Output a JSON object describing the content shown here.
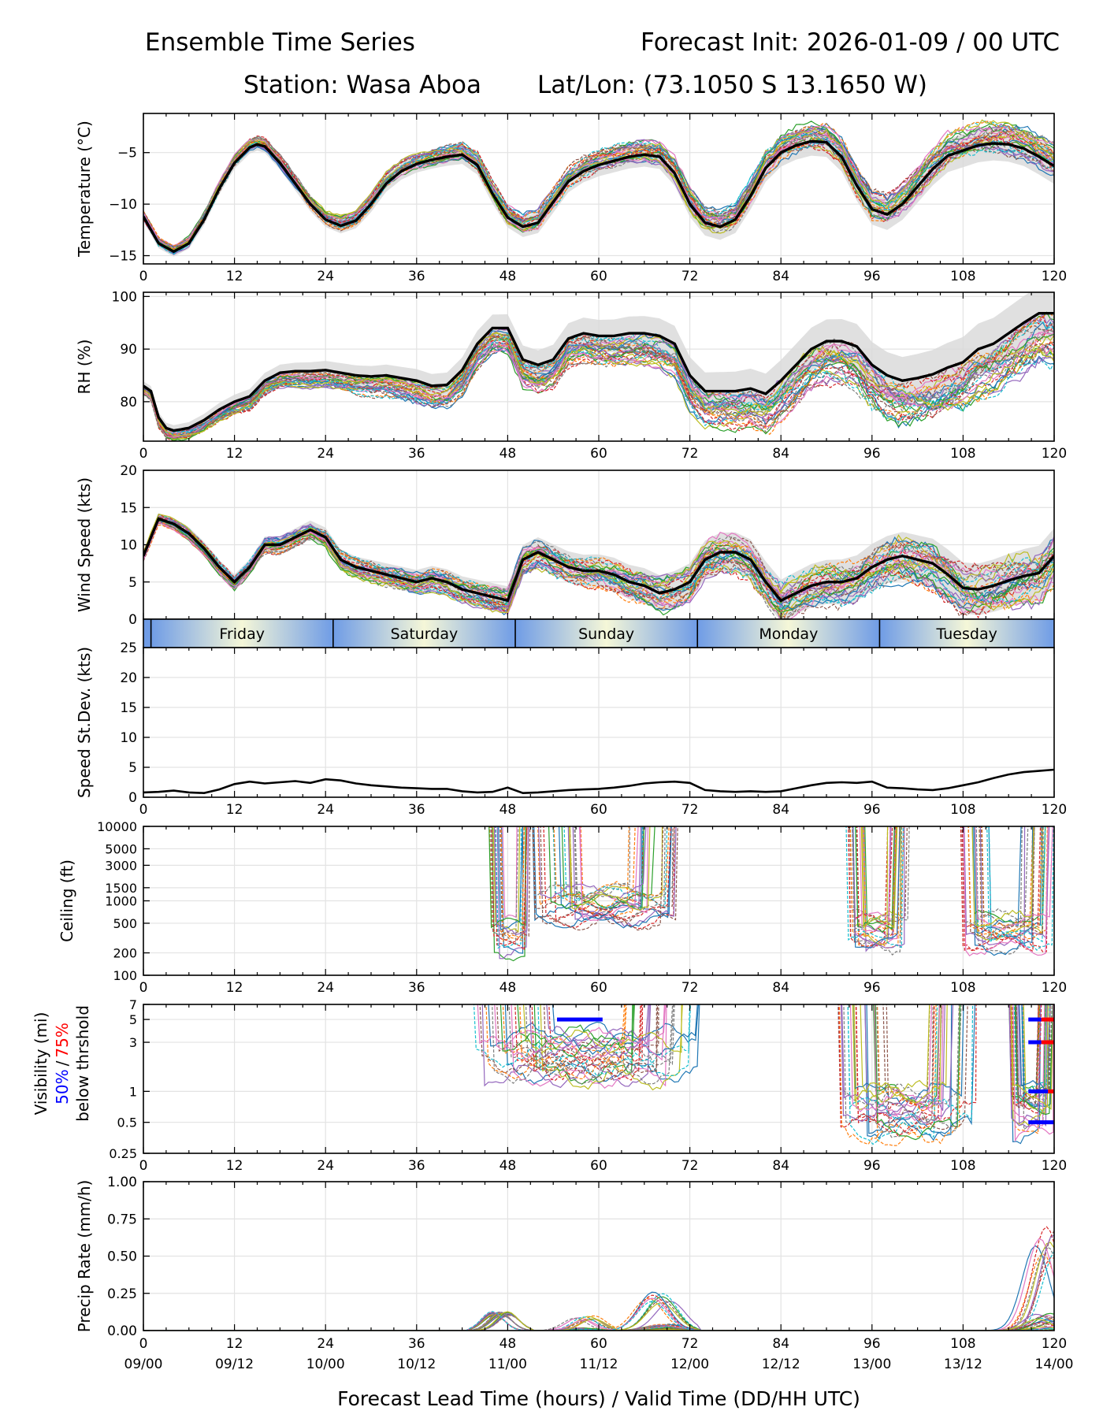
{
  "header": {
    "title_left": "Ensemble Time Series",
    "title_right": "Forecast Init: 2026-01-09 / 00 UTC",
    "station": "Station: Wasa Aboa",
    "latlon": "Lat/Lon: (73.1050 S 13.1650 W)"
  },
  "x_axis": {
    "label": "Forecast Lead Time (hours) / Valid Time (DD/HH UTC)",
    "lead_ticks": [
      "0",
      "12",
      "24",
      "36",
      "48",
      "60",
      "72",
      "84",
      "96",
      "108",
      "120"
    ],
    "valid_ticks": [
      "09/00",
      "09/12",
      "10/00",
      "10/12",
      "11/00",
      "11/12",
      "12/00",
      "12/12",
      "13/00",
      "13/12",
      "14/00"
    ],
    "range": [
      0,
      120
    ]
  },
  "day_strip": {
    "days": [
      "Friday",
      "Saturday",
      "Sunday",
      "Monday",
      "Tuesday"
    ],
    "boundaries_hours": [
      1,
      25,
      49,
      73,
      97
    ]
  },
  "legend": {
    "vis_50": "50%",
    "vis_sep": "/",
    "vis_75": "75%",
    "vis_line2": "below thrshold"
  },
  "chart_data": [
    {
      "type": "line",
      "id": "temperature",
      "ylabel": "Temperature (°C)",
      "ylim": [
        -15.8,
        -1.2
      ],
      "yticks": [
        -15,
        -10,
        -5
      ],
      "ytick_labels": [
        "−15",
        "−10",
        "−5"
      ],
      "grid": true,
      "ensemble_members": 30,
      "mean": {
        "x": [
          0,
          2,
          4,
          6,
          8,
          10,
          12,
          14,
          15,
          16,
          18,
          20,
          22,
          24,
          26,
          28,
          30,
          32,
          34,
          36,
          38,
          40,
          42,
          44,
          46,
          48,
          50,
          52,
          54,
          56,
          58,
          60,
          62,
          64,
          66,
          68,
          70,
          72,
          74,
          76,
          78,
          80,
          82,
          84,
          86,
          88,
          90,
          92,
          94,
          96,
          98,
          100,
          102,
          104,
          106,
          108,
          110,
          112,
          114,
          116,
          118,
          120
        ],
        "y": [
          -11.2,
          -13.8,
          -14.6,
          -13.8,
          -11.5,
          -8.5,
          -6.0,
          -4.5,
          -4.2,
          -4.4,
          -6.0,
          -8.0,
          -10.0,
          -11.5,
          -12.1,
          -11.6,
          -10.0,
          -8.0,
          -6.8,
          -6.1,
          -5.7,
          -5.4,
          -5.2,
          -6.2,
          -9.0,
          -11.3,
          -12.2,
          -11.8,
          -9.8,
          -7.8,
          -6.8,
          -6.2,
          -5.8,
          -5.4,
          -5.2,
          -5.4,
          -7.0,
          -10.0,
          -11.8,
          -12.2,
          -11.5,
          -9.2,
          -6.5,
          -5.0,
          -4.3,
          -3.9,
          -4.0,
          -5.4,
          -8.2,
          -10.5,
          -11.0,
          -10.0,
          -8.3,
          -6.6,
          -5.3,
          -4.8,
          -4.3,
          -4.1,
          -4.2,
          -4.6,
          -5.4,
          -6.3
        ]
      },
      "spread": 0.9,
      "spread_growth": 0.012
    },
    {
      "type": "line",
      "id": "rh",
      "ylabel": "RH (%)",
      "ylim": [
        72.5,
        100.8
      ],
      "yticks": [
        80,
        90,
        100
      ],
      "ytick_labels": [
        "80",
        "90",
        "100"
      ],
      "grid": true,
      "ensemble_members": 30,
      "mean": {
        "x": [
          0,
          1,
          2,
          3,
          4,
          6,
          8,
          10,
          12,
          14,
          16,
          18,
          20,
          22,
          24,
          26,
          28,
          30,
          32,
          34,
          36,
          38,
          40,
          42,
          44,
          46,
          48,
          50,
          52,
          54,
          56,
          58,
          60,
          62,
          64,
          66,
          68,
          70,
          72,
          74,
          76,
          78,
          80,
          82,
          84,
          86,
          88,
          90,
          92,
          94,
          96,
          98,
          100,
          102,
          104,
          106,
          108,
          110,
          112,
          114,
          116,
          118,
          120
        ],
        "y": [
          83,
          82,
          77,
          75,
          74.5,
          75,
          76.5,
          78.5,
          80,
          81,
          84,
          85.5,
          85.8,
          85.8,
          86,
          85.5,
          85,
          84.8,
          85,
          84.5,
          84,
          83,
          83.2,
          86,
          91,
          94,
          94,
          88,
          87,
          88,
          92,
          93,
          92.5,
          92.5,
          93,
          93,
          92.5,
          91,
          85,
          82,
          82,
          82,
          82.5,
          81.5,
          84,
          87,
          90,
          91.5,
          91.5,
          90.5,
          87,
          85,
          84,
          84.5,
          85.2,
          86.5,
          87.5,
          90,
          91,
          93,
          95,
          96.8,
          96.8
        ]
      },
      "spread": 1.8,
      "spread_growth": 0.02
    },
    {
      "type": "line",
      "id": "wind_speed",
      "ylabel": "Wind Speed (kts)",
      "ylim": [
        0,
        20
      ],
      "yticks": [
        0,
        5,
        10,
        15,
        20
      ],
      "ytick_labels": [
        "0",
        "5",
        "10",
        "15",
        "20"
      ],
      "grid": true,
      "ensemble_members": 30,
      "mean": {
        "x": [
          0,
          2,
          4,
          6,
          8,
          10,
          12,
          14,
          16,
          18,
          20,
          22,
          24,
          26,
          28,
          30,
          32,
          34,
          36,
          38,
          40,
          42,
          44,
          46,
          48,
          50,
          52,
          54,
          56,
          58,
          60,
          62,
          64,
          66,
          68,
          70,
          72,
          74,
          76,
          78,
          80,
          82,
          84,
          86,
          88,
          90,
          92,
          94,
          96,
          98,
          100,
          102,
          104,
          106,
          108,
          110,
          112,
          114,
          116,
          118,
          120
        ],
        "y": [
          8.5,
          13.5,
          12.8,
          11.5,
          9.5,
          7.0,
          5.0,
          7.0,
          10.0,
          10.0,
          11.0,
          12.0,
          11.0,
          8.0,
          7.0,
          6.5,
          6.0,
          5.5,
          5.0,
          5.5,
          5.0,
          4.0,
          3.5,
          3.0,
          2.5,
          8.0,
          9.0,
          8.0,
          7.0,
          6.5,
          6.5,
          6.0,
          5.0,
          4.5,
          3.5,
          4.0,
          5.0,
          8.0,
          9.0,
          9.0,
          8.0,
          5.0,
          2.5,
          3.5,
          4.5,
          5.0,
          5.0,
          5.5,
          7.0,
          8.0,
          8.5,
          8.0,
          7.5,
          6.0,
          4.2,
          4.0,
          4.5,
          5.2,
          5.8,
          6.2,
          8.5
        ]
      },
      "spread": 1.4,
      "spread_growth": 0.018
    },
    {
      "type": "line",
      "id": "speed_stdev",
      "ylabel": "Speed St.Dev. (kts)",
      "ylim": [
        0,
        25
      ],
      "yticks": [
        0,
        5,
        10,
        15,
        20,
        25
      ],
      "ytick_labels": [
        "0",
        "5",
        "10",
        "15",
        "20",
        "25"
      ],
      "grid": true,
      "series": [
        {
          "name": "std_dev",
          "x": [
            0,
            2,
            4,
            6,
            8,
            10,
            12,
            14,
            16,
            18,
            20,
            22,
            24,
            26,
            28,
            30,
            32,
            34,
            36,
            38,
            40,
            42,
            44,
            46,
            48,
            50,
            52,
            54,
            56,
            58,
            60,
            62,
            64,
            66,
            68,
            70,
            72,
            74,
            76,
            78,
            80,
            82,
            84,
            86,
            88,
            90,
            92,
            94,
            96,
            98,
            100,
            102,
            104,
            106,
            108,
            110,
            112,
            114,
            116,
            118,
            120
          ],
          "y": [
            0.8,
            0.9,
            1.1,
            0.8,
            0.7,
            1.3,
            2.2,
            2.6,
            2.3,
            2.5,
            2.7,
            2.4,
            3.0,
            2.8,
            2.3,
            2.0,
            1.8,
            1.6,
            1.5,
            1.4,
            1.4,
            1.0,
            0.8,
            0.9,
            1.6,
            0.7,
            0.8,
            1.0,
            1.2,
            1.3,
            1.4,
            1.6,
            1.9,
            2.3,
            2.5,
            2.6,
            2.4,
            1.2,
            1.0,
            0.9,
            1.0,
            0.9,
            1.0,
            1.5,
            2.0,
            2.4,
            2.5,
            2.4,
            2.6,
            1.6,
            1.5,
            1.3,
            1.2,
            1.5,
            2.0,
            2.5,
            3.2,
            3.8,
            4.2,
            4.4,
            4.6
          ]
        }
      ]
    },
    {
      "type": "line",
      "id": "ceiling",
      "ylabel": "Ceiling (ft)",
      "yscale": "log",
      "ylim": [
        100,
        10000
      ],
      "yticks": [
        100,
        200,
        500,
        1000,
        1500,
        3000,
        5000,
        10000
      ],
      "ytick_labels": [
        "100",
        "200",
        "500",
        "1000",
        "1500",
        "3000",
        "5000",
        "10000"
      ],
      "grid": true,
      "ensemble_members": 30,
      "episodes": [
        {
          "start": 45.5,
          "end": 51,
          "floor": 320
        },
        {
          "start": 51,
          "end": 70.5,
          "floor": 850
        },
        {
          "start": 92.5,
          "end": 101,
          "floor": 380
        },
        {
          "start": 107.5,
          "end": 120,
          "floor": 380
        }
      ]
    },
    {
      "type": "line",
      "id": "visibility",
      "ylabel": "Visibility (mi)",
      "yscale": "log",
      "ylim": [
        0.25,
        7
      ],
      "yticks": [
        0.25,
        0.5,
        1,
        3,
        5,
        7
      ],
      "ytick_labels": [
        "0.25",
        "0.5",
        "1",
        "3",
        "5",
        "7"
      ],
      "grid": true,
      "ensemble_members": 30,
      "episodes": [
        {
          "start": 43.5,
          "end": 74,
          "floor": 2.2
        },
        {
          "start": 91.5,
          "end": 110,
          "floor": 0.6
        },
        {
          "start": 114,
          "end": 120,
          "floor": 0.6
        }
      ],
      "threshold_bars": [
        {
          "level": 5,
          "x0": 54.5,
          "x1": 60.5,
          "color": "blue"
        },
        {
          "level": 5,
          "x0": 118.3,
          "x1": 120,
          "color": "red"
        },
        {
          "level": 5,
          "x0": 116.6,
          "x1": 118.3,
          "color": "blue"
        },
        {
          "level": 3,
          "x0": 118.3,
          "x1": 120,
          "color": "red"
        },
        {
          "level": 3,
          "x0": 116.6,
          "x1": 118.3,
          "color": "blue"
        },
        {
          "level": 1,
          "x0": 116.6,
          "x1": 119.2,
          "color": "blue"
        },
        {
          "level": 1,
          "x0": 119.2,
          "x1": 120,
          "color": "red"
        },
        {
          "level": 0.5,
          "x0": 116.6,
          "x1": 120,
          "color": "blue"
        }
      ]
    },
    {
      "type": "line",
      "id": "precip",
      "ylabel": "Precip Rate (mm/h)",
      "ylim": [
        0,
        1.0
      ],
      "yticks": [
        0,
        0.25,
        0.5,
        0.75,
        1.0
      ],
      "ytick_labels": [
        "0.00",
        "0.25",
        "0.50",
        "0.75",
        "1.00"
      ],
      "grid": true,
      "ensemble_members": 30,
      "events": [
        {
          "start": 43,
          "end": 51,
          "peak_hour": 47,
          "peak": 0.14
        },
        {
          "start": 53,
          "end": 62,
          "peak_hour": 58,
          "peak": 0.1
        },
        {
          "start": 62,
          "end": 73,
          "peak_hour": 68,
          "peak": 0.26
        },
        {
          "start": 110,
          "end": 120,
          "peak_hour": 119,
          "peak": 0.7
        }
      ]
    }
  ]
}
